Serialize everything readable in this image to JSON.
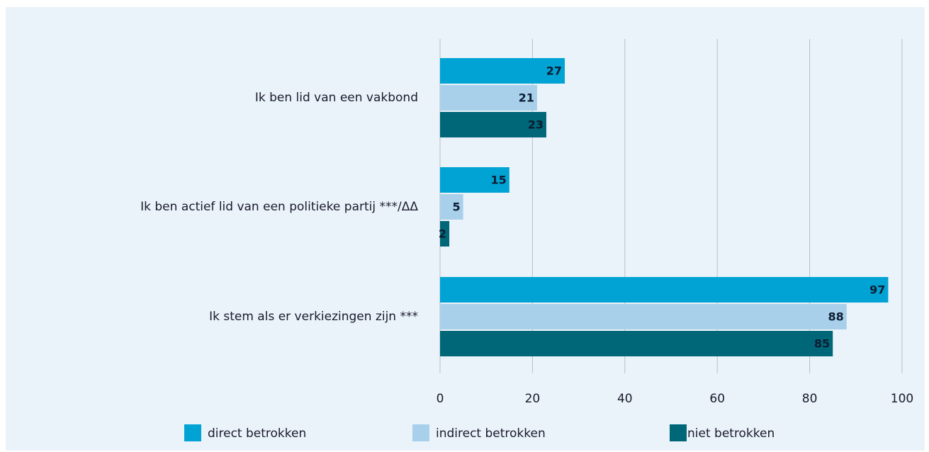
{
  "chart_data": {
    "type": "barh",
    "categories": [
      "Ik ben lid van een vakbond",
      "Ik ben actief lid van een politieke partij ***/ΔΔ",
      "Ik stem als er verkiezingen zijn ***"
    ],
    "series": [
      {
        "name": "direct betrokken",
        "color": "#00a3d3",
        "values": [
          27,
          15,
          97
        ]
      },
      {
        "name": "indirect betrokken",
        "color": "#a9d0eb",
        "values": [
          21,
          5,
          88
        ]
      },
      {
        "name": "niet betrokken",
        "color": "#006778",
        "values": [
          23,
          2,
          85
        ]
      }
    ],
    "xlim": [
      0,
      100
    ],
    "xticks": [
      0,
      20,
      40,
      60,
      80,
      100
    ],
    "grid": true
  }
}
